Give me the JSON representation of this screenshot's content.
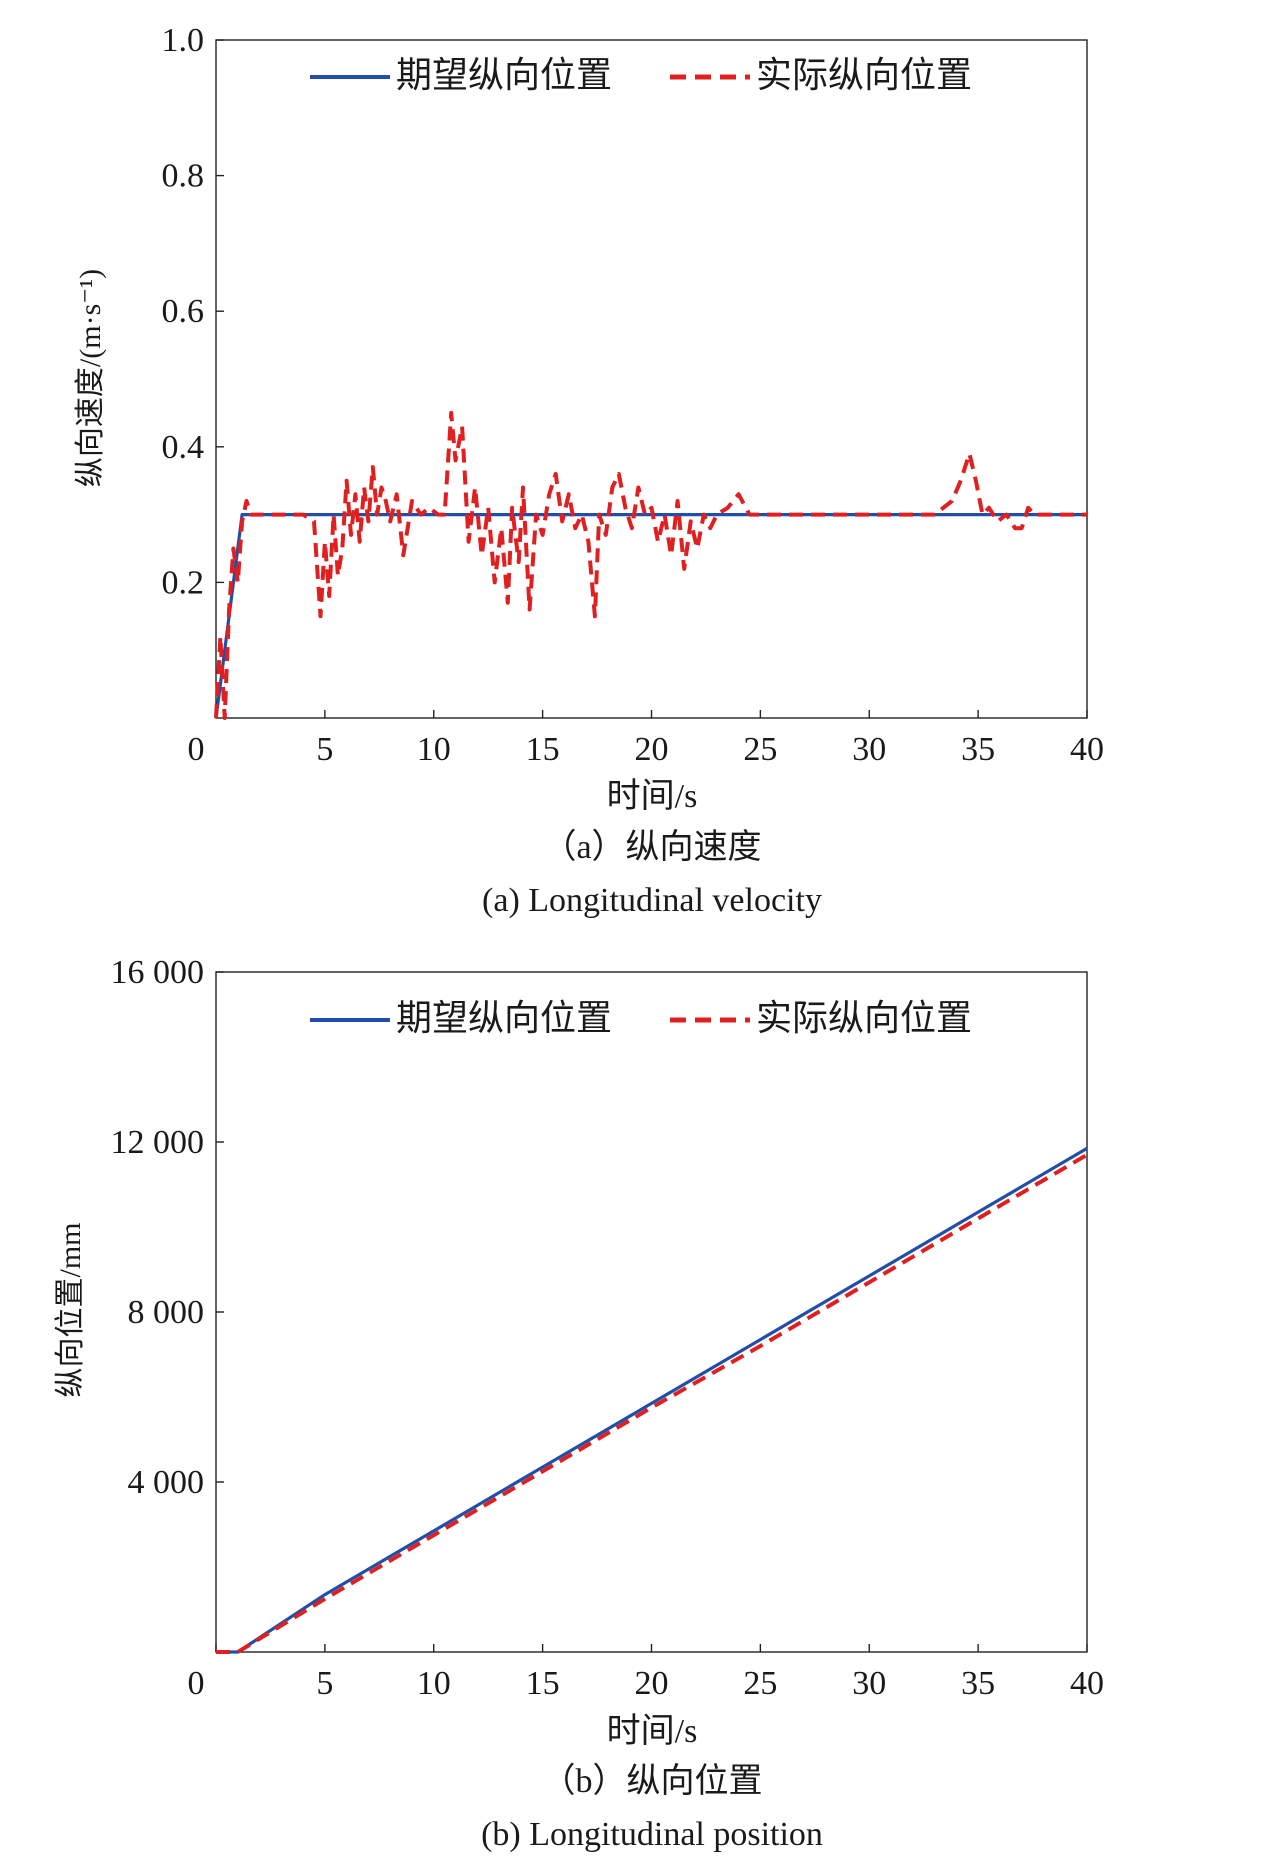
{
  "chart_data": [
    {
      "type": "line",
      "caption_zh": "（a）纵向速度",
      "caption_en": "(a) Longitudinal velocity",
      "xlabel": "时间/s",
      "ylabel": "纵向速度/(m·s⁻¹)",
      "xlim": [
        0,
        40
      ],
      "ylim": [
        0,
        1.0
      ],
      "xticks": [
        0,
        5,
        10,
        15,
        20,
        25,
        30,
        35,
        40
      ],
      "yticks": [
        0.2,
        0.4,
        0.6,
        0.8,
        1.0
      ],
      "ytick_labels": [
        "0.2",
        "0.4",
        "0.6",
        "0.8",
        "1.0"
      ],
      "legend_position": "top",
      "series": [
        {
          "name": "期望纵向位置",
          "style": "solid",
          "color": "#1f4fa8",
          "x": [
            0,
            0.2,
            1.2,
            1.5,
            40
          ],
          "y": [
            0,
            0.05,
            0.3,
            0.3,
            0.3
          ]
        },
        {
          "name": "实际纵向位置",
          "style": "dashed",
          "color": "#e02020",
          "x": [
            0,
            0.2,
            0.4,
            0.6,
            0.8,
            1.0,
            1.2,
            1.4,
            1.6,
            2.0,
            3.0,
            4.0,
            4.5,
            4.8,
            5.0,
            5.2,
            5.4,
            5.6,
            5.8,
            6.0,
            6.2,
            6.4,
            6.6,
            6.8,
            7.0,
            7.2,
            7.4,
            7.6,
            7.8,
            8.0,
            8.3,
            8.6,
            9.0,
            9.4,
            9.8,
            10.2,
            10.5,
            10.8,
            11.0,
            11.3,
            11.6,
            11.9,
            12.2,
            12.5,
            12.8,
            13.1,
            13.4,
            13.6,
            13.9,
            14.1,
            14.4,
            14.7,
            15.0,
            15.3,
            15.6,
            15.9,
            16.2,
            16.5,
            16.8,
            17.1,
            17.4,
            17.6,
            17.9,
            18.2,
            18.5,
            18.8,
            19.1,
            19.4,
            19.7,
            20.0,
            20.3,
            20.6,
            20.9,
            21.2,
            21.5,
            21.8,
            22.1,
            22.4,
            22.7,
            23.0,
            23.5,
            24.0,
            24.5,
            25.0,
            26.0,
            28.0,
            30.0,
            32.0,
            33.0,
            33.8,
            34.2,
            34.6,
            34.9,
            35.2,
            35.5,
            35.9,
            36.3,
            36.7,
            37.0,
            37.3,
            37.6,
            38.0,
            38.5,
            39.0,
            40.0
          ],
          "y": [
            0.0,
            0.12,
            0.0,
            0.16,
            0.25,
            0.2,
            0.29,
            0.32,
            0.3,
            0.3,
            0.3,
            0.3,
            0.29,
            0.15,
            0.26,
            0.18,
            0.3,
            0.21,
            0.25,
            0.35,
            0.27,
            0.33,
            0.26,
            0.34,
            0.29,
            0.37,
            0.3,
            0.34,
            0.32,
            0.29,
            0.33,
            0.24,
            0.32,
            0.3,
            0.31,
            0.3,
            0.3,
            0.45,
            0.38,
            0.43,
            0.26,
            0.34,
            0.24,
            0.31,
            0.2,
            0.28,
            0.17,
            0.31,
            0.23,
            0.34,
            0.16,
            0.3,
            0.27,
            0.33,
            0.36,
            0.29,
            0.33,
            0.28,
            0.3,
            0.26,
            0.15,
            0.3,
            0.27,
            0.34,
            0.36,
            0.31,
            0.28,
            0.34,
            0.3,
            0.31,
            0.26,
            0.3,
            0.24,
            0.32,
            0.22,
            0.29,
            0.25,
            0.3,
            0.28,
            0.3,
            0.31,
            0.33,
            0.3,
            0.3,
            0.3,
            0.3,
            0.3,
            0.3,
            0.3,
            0.32,
            0.35,
            0.39,
            0.35,
            0.3,
            0.31,
            0.29,
            0.3,
            0.28,
            0.28,
            0.31,
            0.3,
            0.3,
            0.3,
            0.3,
            0.3
          ]
        }
      ]
    },
    {
      "type": "line",
      "caption_zh": "（b）纵向位置",
      "caption_en": "(b) Longitudinal position",
      "xlabel": "时间/s",
      "ylabel": "纵向位置/mm",
      "xlim": [
        0,
        40
      ],
      "ylim": [
        0,
        16000
      ],
      "xticks": [
        0,
        5,
        10,
        15,
        20,
        25,
        30,
        35,
        40
      ],
      "yticks": [
        4000,
        8000,
        12000,
        16000
      ],
      "ytick_labels": [
        "4 000",
        "8 000",
        "12 000",
        "16 000"
      ],
      "legend_position": "top",
      "series": [
        {
          "name": "期望纵向位置",
          "style": "solid",
          "color": "#1f4fa8",
          "x": [
            0,
            1,
            5,
            10,
            15,
            20,
            25,
            30,
            35,
            40
          ],
          "y": [
            0,
            0,
            1350,
            2850,
            4350,
            5850,
            7350,
            8850,
            10350,
            11850
          ]
        },
        {
          "name": "实际纵向位置",
          "style": "dashed",
          "color": "#e02020",
          "x": [
            0,
            1,
            5,
            10,
            15,
            20,
            25,
            30,
            35,
            40
          ],
          "y": [
            0,
            0,
            1250,
            2750,
            4250,
            5750,
            7200,
            8700,
            10200,
            11700
          ]
        }
      ]
    }
  ]
}
